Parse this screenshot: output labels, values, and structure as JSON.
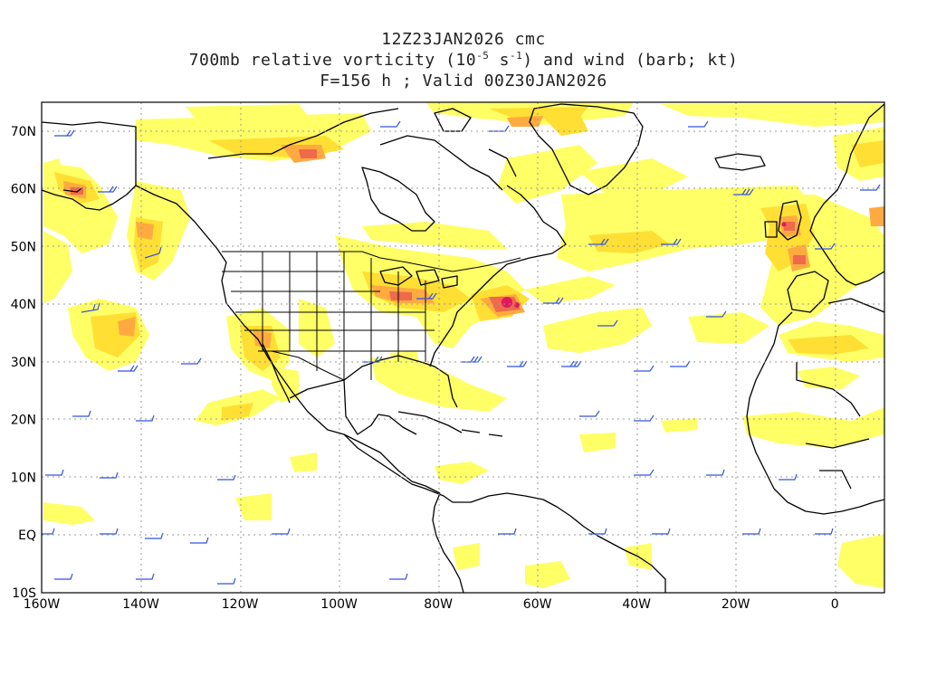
{
  "title": {
    "line1": "12Z23JAN2026 cmc",
    "line2_prefix": "700mb relative vorticity (10",
    "line2_exp1": "-5",
    "line2_mid": " s",
    "line2_exp2": "-1",
    "line2_suffix": ") and wind (barb; kt)",
    "line3": "F=156 h ; Valid 00Z30JAN2026"
  },
  "map": {
    "projection": "cylindrical equidistant",
    "lon_range": [
      -160,
      10
    ],
    "lat_range": [
      -10,
      75
    ],
    "lat_labels": [
      {
        "lat": 70,
        "label": "70N"
      },
      {
        "lat": 60,
        "label": "60N"
      },
      {
        "lat": 50,
        "label": "50N"
      },
      {
        "lat": 40,
        "label": "40N"
      },
      {
        "lat": 30,
        "label": "30N"
      },
      {
        "lat": 20,
        "label": "20N"
      },
      {
        "lat": 10,
        "label": "10N"
      },
      {
        "lat": 0,
        "label": "EQ"
      },
      {
        "lat": -10,
        "label": "10S"
      }
    ],
    "lon_labels": [
      {
        "lon": -160,
        "label": "160W"
      },
      {
        "lon": -140,
        "label": "140W"
      },
      {
        "lon": -120,
        "label": "120W"
      },
      {
        "lon": -100,
        "label": "100W"
      },
      {
        "lon": -80,
        "label": "80W"
      },
      {
        "lon": -60,
        "label": "60W"
      },
      {
        "lon": -40,
        "label": "40W"
      },
      {
        "lon": -20,
        "label": "20W"
      },
      {
        "lon": 0,
        "label": "0"
      }
    ],
    "grid": "dotted",
    "colors": {
      "contour_light": "#ffff66",
      "contour_mid": "#ffe033",
      "contour_orange": "#ffb040",
      "contour_dark": "#f07050",
      "contour_max": "#e01860",
      "barbs": "#3355dd",
      "coast": "#000000"
    }
  }
}
